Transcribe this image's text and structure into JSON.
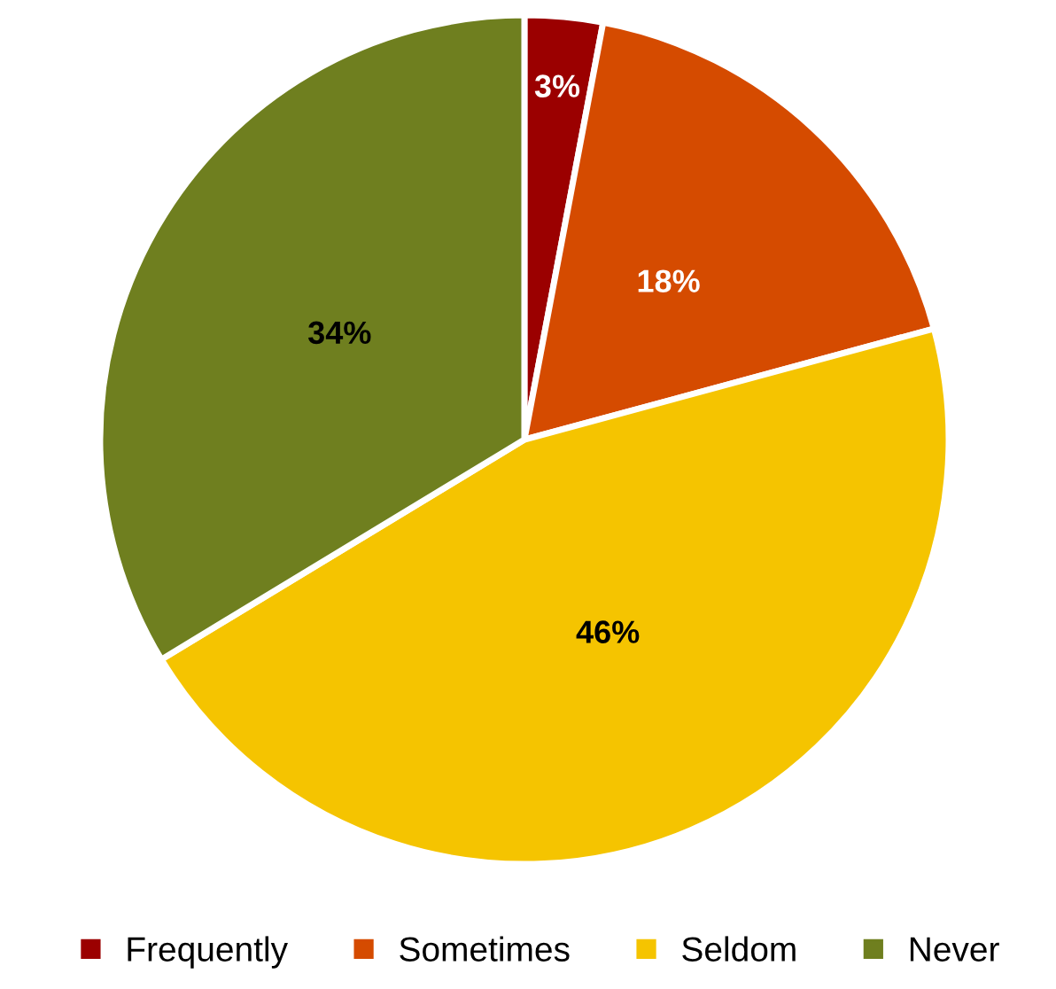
{
  "chart_data": {
    "type": "pie",
    "categories": [
      "Frequently",
      "Sometimes",
      "Seldom",
      "Never"
    ],
    "values": [
      3,
      18,
      46,
      34
    ],
    "colors": [
      "#9b0000",
      "#d54b00",
      "#f5c400",
      "#6f7f1f"
    ],
    "value_labels": [
      "3%",
      "18%",
      "46%",
      "34%"
    ],
    "legend": "bottom"
  }
}
